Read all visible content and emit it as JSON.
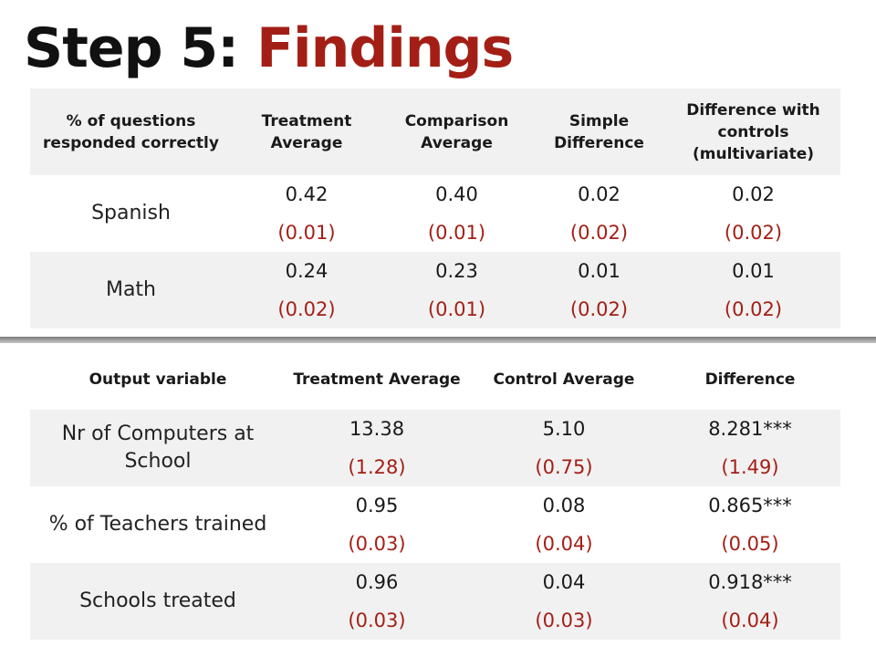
{
  "title": {
    "prefix": "Step 5:",
    "highlight": "Findings"
  },
  "table1": {
    "headers": [
      "% of questions responded correctly",
      "Treatment Average",
      "Comparison Average",
      "Simple Difference",
      "Difference with controls (multivariate)"
    ],
    "rows": [
      {
        "label": "Spanish",
        "values": [
          "0.42",
          "0.40",
          "0.02",
          "0.02"
        ],
        "se": [
          "(0.01)",
          "(0.01)",
          "(0.02)",
          "(0.02)"
        ]
      },
      {
        "label": "Math",
        "values": [
          "0.24",
          "0.23",
          "0.01",
          "0.01"
        ],
        "se": [
          "(0.02)",
          "(0.01)",
          "(0.02)",
          "(0.02)"
        ]
      }
    ]
  },
  "table2": {
    "headers": [
      "Output variable",
      "Treatment Average",
      "Control Average",
      "Difference"
    ],
    "rows": [
      {
        "label": "Nr of Computers at School",
        "values": [
          "13.38",
          "5.10",
          "8.281***"
        ],
        "se": [
          "(1.28)",
          "(0.75)",
          "(1.49)"
        ]
      },
      {
        "label": "% of Teachers trained",
        "values": [
          "0.95",
          "0.08",
          "0.865***"
        ],
        "se": [
          "(0.03)",
          "(0.04)",
          "(0.05)"
        ]
      },
      {
        "label": "Schools treated",
        "values": [
          "0.96",
          "0.04",
          "0.918***"
        ],
        "se": [
          "(0.03)",
          "(0.03)",
          "(0.04)"
        ]
      }
    ]
  },
  "colors": {
    "accent": "#a31f16",
    "row_shade": "#f1f1f1",
    "text": "#1a1a1a"
  }
}
